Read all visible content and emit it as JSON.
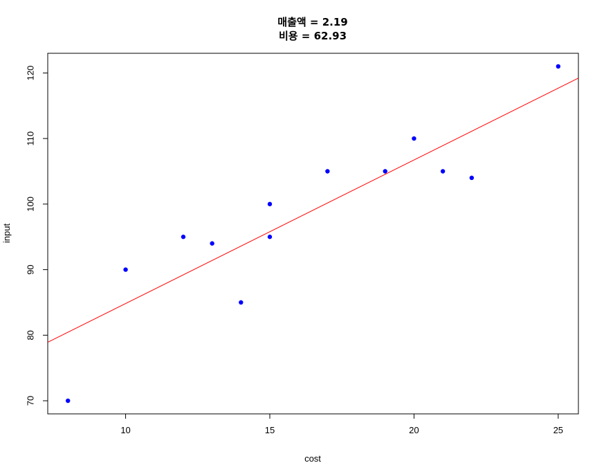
{
  "chart_data": {
    "type": "scatter",
    "title_lines": [
      "매출액 =  2.19",
      "비용 =  62.93"
    ],
    "xlabel": "cost",
    "ylabel": "input",
    "xlim": [
      7.3,
      25.7
    ],
    "ylim": [
      68,
      123
    ],
    "x_ticks": [
      10,
      15,
      20,
      25
    ],
    "y_ticks": [
      70,
      80,
      90,
      100,
      110,
      120
    ],
    "points": [
      {
        "x": 8,
        "y": 70
      },
      {
        "x": 10,
        "y": 90
      },
      {
        "x": 12,
        "y": 95
      },
      {
        "x": 13,
        "y": 94
      },
      {
        "x": 14,
        "y": 85
      },
      {
        "x": 15,
        "y": 100
      },
      {
        "x": 15,
        "y": 95
      },
      {
        "x": 17,
        "y": 105
      },
      {
        "x": 19,
        "y": 105
      },
      {
        "x": 20,
        "y": 110
      },
      {
        "x": 21,
        "y": 105
      },
      {
        "x": 22,
        "y": 104
      },
      {
        "x": 25,
        "y": 121
      }
    ],
    "regression_line": {
      "slope": 2.19,
      "intercept": 62.93
    },
    "point_color": "#0000ff",
    "line_color": "#ff0000",
    "grid": false
  }
}
